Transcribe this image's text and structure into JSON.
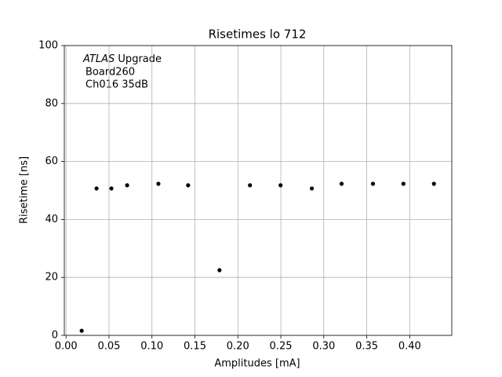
{
  "chart_data": {
    "type": "scatter",
    "title": "Risetimes lo 712",
    "xlabel": "Amplitudes [mA]",
    "ylabel": "Risetime [ns]",
    "annotation": {
      "experiment": "ATLAS",
      "tag": "Upgrade",
      "lines": [
        "Board260",
        "Ch016 35dB"
      ]
    },
    "x": [
      0.0182,
      0.0355,
      0.0528,
      0.0711,
      0.1075,
      0.1421,
      0.1786,
      0.2141,
      0.2497,
      0.2861,
      0.3207,
      0.3572,
      0.3927,
      0.4282
    ],
    "values": [
      1.6,
      50.7,
      50.7,
      51.8,
      52.3,
      51.8,
      22.5,
      51.8,
      51.8,
      50.7,
      52.3,
      52.3,
      52.3,
      52.3
    ],
    "color": "#000000",
    "xlim": [
      -0.002,
      0.449
    ],
    "ylim": [
      0,
      100
    ],
    "xticks": [
      {
        "value": 0,
        "label": "0.00"
      },
      0.05,
      {
        "value": 0.1,
        "label": "0.10"
      },
      0.15,
      {
        "value": 0.2,
        "label": "0.20"
      },
      0.25,
      {
        "value": 0.3,
        "label": "0.30"
      },
      0.35,
      {
        "value": 0.4,
        "label": "0.40"
      }
    ],
    "yticks": [
      0,
      20,
      40,
      60,
      80,
      100
    ],
    "grid": true
  }
}
